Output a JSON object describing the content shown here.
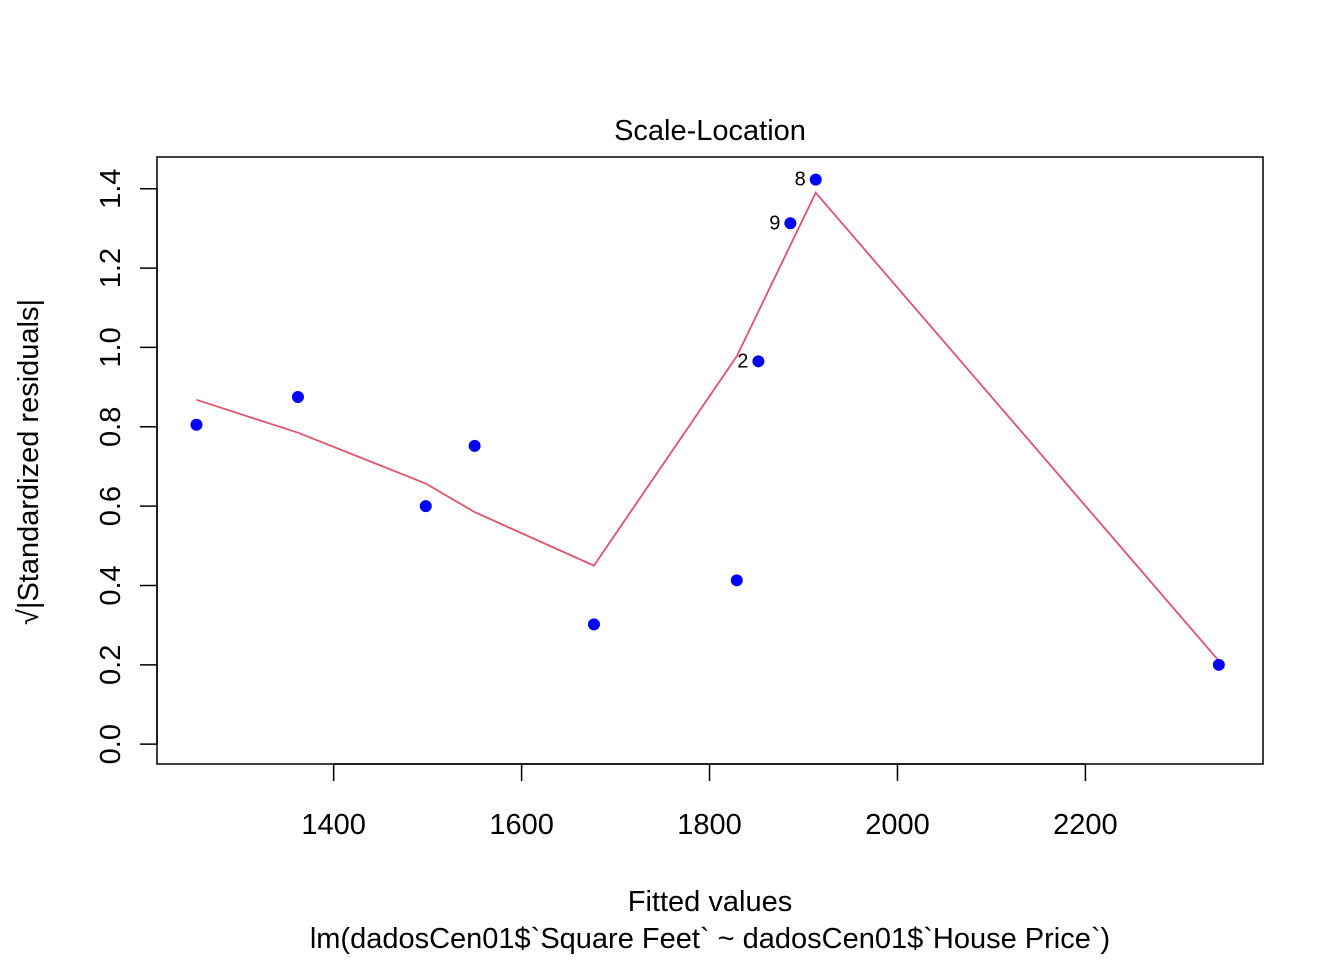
{
  "chart_data": {
    "type": "scatter",
    "title": "Scale-Location",
    "xlabel": "Fitted values",
    "ylabel_sqrt_symbol": "√",
    "ylabel": "|Standardized residuals|",
    "subtitle": "lm(dadosCen01$`Square Feet` ~ dadosCen01$`House Price`)",
    "xlim": [
      1212,
      2389
    ],
    "ylim": [
      -0.05,
      1.48
    ],
    "x_ticks": [
      1400,
      1600,
      1800,
      2000,
      2200
    ],
    "y_ticks": [
      0.0,
      0.2,
      0.4,
      0.6,
      0.8,
      1.0,
      1.2,
      1.4
    ],
    "x_tick_labels": [
      "1400",
      "1600",
      "1800",
      "2000",
      "2200"
    ],
    "y_tick_labels": [
      "0.0",
      "0.2",
      "0.4",
      "0.6",
      "0.8",
      "1.0",
      "1.2",
      "1.4"
    ],
    "points": [
      {
        "x": 1254,
        "y": 0.805,
        "label": ""
      },
      {
        "x": 1362,
        "y": 0.875,
        "label": ""
      },
      {
        "x": 1498,
        "y": 0.6,
        "label": ""
      },
      {
        "x": 1550,
        "y": 0.752,
        "label": ""
      },
      {
        "x": 1677,
        "y": 0.302,
        "label": ""
      },
      {
        "x": 1829,
        "y": 0.413,
        "label": ""
      },
      {
        "x": 1852,
        "y": 0.965,
        "label": "2"
      },
      {
        "x": 1886,
        "y": 1.313,
        "label": "9"
      },
      {
        "x": 1913,
        "y": 1.423,
        "label": "8"
      },
      {
        "x": 2342,
        "y": 0.2,
        "label": ""
      }
    ],
    "smooth_line": [
      {
        "x": 1254,
        "y": 0.868
      },
      {
        "x": 1362,
        "y": 0.785
      },
      {
        "x": 1498,
        "y": 0.657
      },
      {
        "x": 1550,
        "y": 0.585
      },
      {
        "x": 1677,
        "y": 0.45
      },
      {
        "x": 1829,
        "y": 0.978
      },
      {
        "x": 1913,
        "y": 1.39
      },
      {
        "x": 2342,
        "y": 0.21
      }
    ],
    "point_color": "#0000ff",
    "line_color": "#df536b",
    "grid": false
  }
}
